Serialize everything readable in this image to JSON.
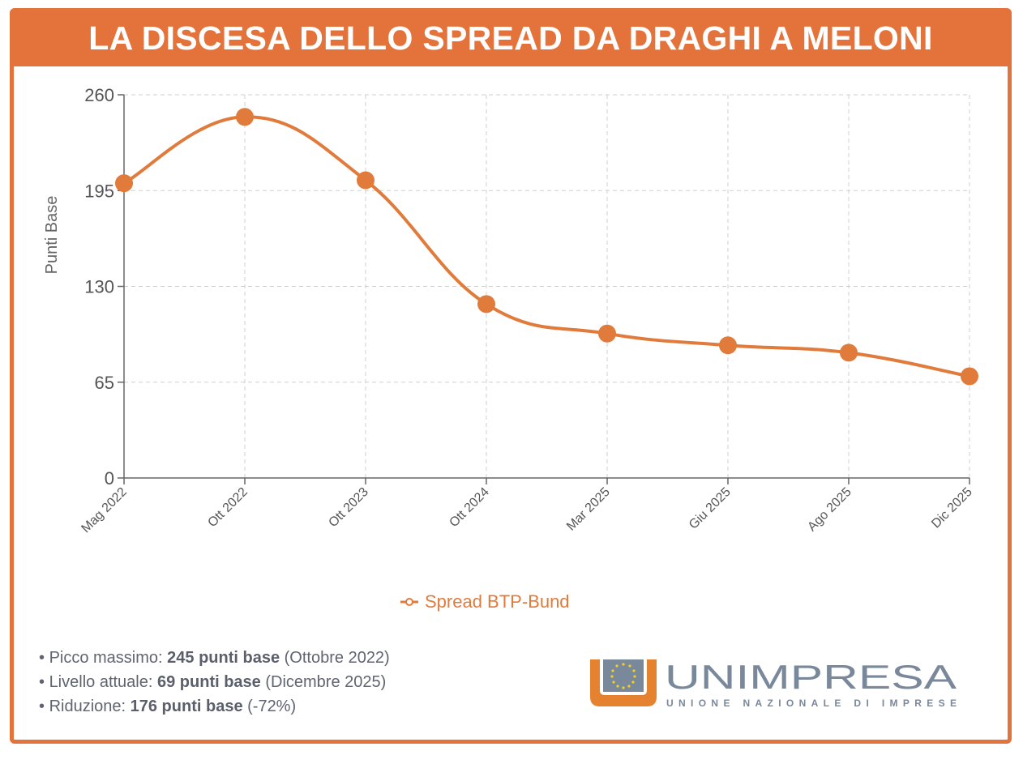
{
  "title": "LA DISCESA DELLO SPREAD DA DRAGHI A MELONI",
  "colors": {
    "accent": "#e4733b",
    "line": "#e07b3c",
    "grid": "#cfcfcf",
    "text": "#5f6470",
    "logo_gray": "#7a889c"
  },
  "chart_data": {
    "type": "line",
    "title": "",
    "xlabel": "",
    "ylabel": "Punti Base",
    "categories": [
      "Mag 2022",
      "Ott 2022",
      "Ott 2023",
      "Ott 2024",
      "Mar 2025",
      "Giu 2025",
      "Ago 2025",
      "Dic 2025"
    ],
    "series": [
      {
        "name": "Spread BTP-Bund",
        "values": [
          200,
          245,
          202,
          118,
          98,
          90,
          85,
          69
        ]
      }
    ],
    "ylim": [
      0,
      260
    ],
    "yticks": [
      0,
      65,
      130,
      195,
      260
    ],
    "grid": true,
    "legend": "bottom-center"
  },
  "notes": [
    {
      "label": "Picco massimo: ",
      "value": "245 punti base",
      "detail": " (Ottobre 2022)"
    },
    {
      "label": "Livello attuale: ",
      "value": "69 punti base",
      "detail": " (Dicembre 2025)"
    },
    {
      "label": "Riduzione: ",
      "value": "176 punti base",
      "detail": " (-72%)"
    }
  ],
  "logo": {
    "name": "UNIMPRESA",
    "tagline": "UNIONE NAZIONALE DI IMPRESE"
  }
}
